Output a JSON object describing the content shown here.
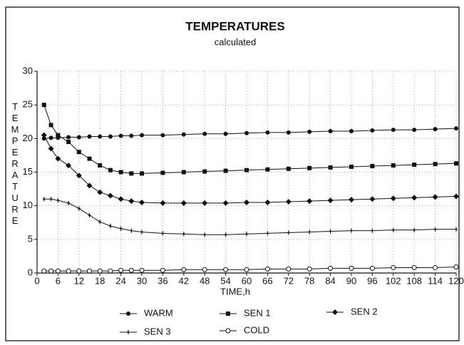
{
  "chart_data": {
    "type": "line",
    "title": "TEMPERATURES",
    "subtitle": "calculated",
    "x_label": "TIME,h",
    "y_label": "TEMPERATURE",
    "x": [
      2,
      4,
      6,
      9,
      12,
      15,
      18,
      21,
      24,
      27,
      30,
      36,
      42,
      48,
      54,
      60,
      66,
      72,
      78,
      84,
      90,
      96,
      102,
      108,
      114,
      120
    ],
    "series": [
      {
        "name": "WARM",
        "color": "#111111",
        "marker": "circle",
        "values": [
          20,
          20.1,
          20.1,
          20.2,
          20.2,
          20.3,
          20.3,
          20.3,
          20.4,
          20.4,
          20.5,
          20.5,
          20.6,
          20.7,
          20.7,
          20.8,
          20.9,
          20.9,
          21,
          21.1,
          21.1,
          21.2,
          21.3,
          21.3,
          21.4,
          21.5
        ]
      },
      {
        "name": "SEN 1",
        "color": "#111111",
        "marker": "square",
        "values": [
          25,
          22,
          20.5,
          19.5,
          18,
          17,
          16,
          15.3,
          15,
          14.8,
          14.8,
          14.9,
          15,
          15.1,
          15.2,
          15.3,
          15.4,
          15.5,
          15.6,
          15.7,
          15.8,
          15.9,
          16,
          16.1,
          16.2,
          16.3
        ]
      },
      {
        "name": "SEN 2",
        "color": "#111111",
        "marker": "diamond",
        "values": [
          20.5,
          18.5,
          17,
          16,
          14.5,
          13,
          12,
          11.5,
          11,
          10.7,
          10.5,
          10.4,
          10.4,
          10.4,
          10.4,
          10.5,
          10.5,
          10.6,
          10.7,
          10.8,
          10.9,
          11,
          11.1,
          11.2,
          11.3,
          11.4
        ]
      },
      {
        "name": "SEN 3",
        "color": "#111111",
        "marker": "tick",
        "values": [
          11,
          11,
          10.8,
          10.4,
          9.6,
          8.6,
          7.6,
          7,
          6.6,
          6.3,
          6.1,
          5.9,
          5.8,
          5.7,
          5.7,
          5.8,
          5.9,
          6,
          6.1,
          6.2,
          6.3,
          6.3,
          6.4,
          6.4,
          6.5,
          6.5
        ]
      },
      {
        "name": "COLD",
        "color": "#111111",
        "marker": "open-circle",
        "values": [
          0.3,
          0.3,
          0.3,
          0.3,
          0.3,
          0.3,
          0.3,
          0.3,
          0.4,
          0.4,
          0.4,
          0.4,
          0.5,
          0.5,
          0.5,
          0.5,
          0.6,
          0.6,
          0.6,
          0.7,
          0.7,
          0.7,
          0.8,
          0.8,
          0.8,
          0.9
        ]
      }
    ],
    "xlim": [
      0,
      120
    ],
    "xticks": [
      0,
      6,
      12,
      18,
      24,
      30,
      36,
      42,
      48,
      54,
      60,
      66,
      72,
      78,
      84,
      90,
      96,
      102,
      108,
      114,
      120
    ],
    "ylim": [
      0,
      30
    ],
    "yticks": [
      0,
      5,
      10,
      15,
      20,
      25,
      30
    ],
    "grid": true
  }
}
